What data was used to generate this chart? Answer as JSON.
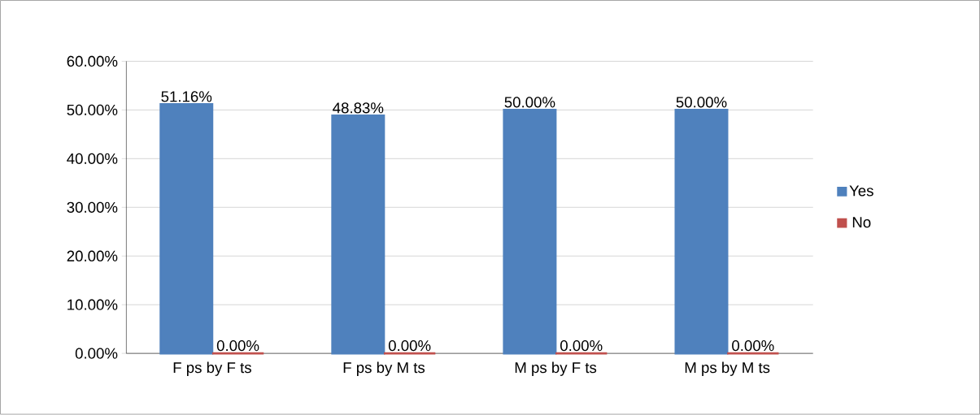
{
  "chart_data": {
    "type": "bar",
    "categories": [
      "F ps by F ts",
      "F ps by M ts",
      "M ps by F ts",
      "M ps by M ts"
    ],
    "series": [
      {
        "name": "Yes",
        "color": "#4f81bd",
        "values": [
          51.16,
          48.83,
          50,
          50
        ],
        "value_labels": [
          "51.16%",
          "48.83%",
          "50.00%",
          "50.00%"
        ]
      },
      {
        "name": "No",
        "color": "#c0504d",
        "values": [
          0,
          0,
          0,
          0
        ],
        "value_labels": [
          "0.00%",
          "0.00%",
          "0.00%",
          "0.00%"
        ]
      }
    ],
    "ylim": [
      0,
      60
    ],
    "yticks": [
      {
        "value": 0,
        "label": "0.00%"
      },
      {
        "value": 10,
        "label": "10.00%"
      },
      {
        "value": 20,
        "label": "20.00%"
      },
      {
        "value": 30,
        "label": "30.00%"
      },
      {
        "value": 40,
        "label": "40.00%"
      },
      {
        "value": 50,
        "label": "50.00%"
      },
      {
        "value": 60,
        "label": "60.00%"
      }
    ],
    "grid": "y",
    "legend": "right"
  }
}
